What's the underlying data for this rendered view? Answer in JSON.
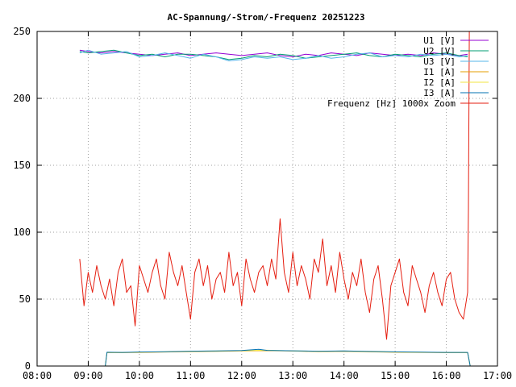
{
  "chart_data": {
    "type": "line",
    "title": "AC-Spannung/-Strom/-Frequenz 20251223",
    "xlabel": "",
    "ylabel": "",
    "xlim": [
      "08:00",
      "17:00"
    ],
    "ylim": [
      0,
      250
    ],
    "grid": true,
    "legend": "top-right",
    "x_ticks": [
      "08:00",
      "09:00",
      "10:00",
      "11:00",
      "12:00",
      "13:00",
      "14:00",
      "15:00",
      "16:00",
      "17:00"
    ],
    "y_ticks": [
      0,
      50,
      100,
      150,
      200,
      250
    ],
    "series": [
      {
        "name": "U1 [V]",
        "color": "#9400d3",
        "x": [
          "08:50",
          "09:00",
          "09:15",
          "09:30",
          "09:45",
          "10:00",
          "10:15",
          "10:30",
          "10:45",
          "11:00",
          "11:15",
          "11:30",
          "11:45",
          "12:00",
          "12:15",
          "12:30",
          "12:45",
          "13:00",
          "13:15",
          "13:30",
          "13:45",
          "14:00",
          "14:15",
          "14:30",
          "14:45",
          "15:00",
          "15:15",
          "15:30",
          "15:45",
          "16:00",
          "16:15",
          "16:25"
        ],
        "y": [
          236,
          235,
          234,
          235,
          234,
          233,
          232,
          233,
          234,
          232,
          233,
          234,
          233,
          232,
          233,
          234,
          232,
          231,
          233,
          232,
          234,
          233,
          232,
          234,
          233,
          232,
          233,
          232,
          234,
          233,
          232,
          233
        ]
      },
      {
        "name": "U2 [V]",
        "color": "#009e73",
        "x": [
          "08:50",
          "09:00",
          "09:15",
          "09:30",
          "09:45",
          "10:00",
          "10:15",
          "10:30",
          "10:45",
          "11:00",
          "11:15",
          "11:30",
          "11:45",
          "12:00",
          "12:15",
          "12:30",
          "12:45",
          "13:00",
          "13:15",
          "13:30",
          "13:45",
          "14:00",
          "14:15",
          "14:30",
          "14:45",
          "15:00",
          "15:15",
          "15:30",
          "15:45",
          "16:00",
          "16:15",
          "16:25"
        ],
        "y": [
          235,
          234,
          235,
          236,
          234,
          232,
          233,
          231,
          233,
          233,
          232,
          231,
          229,
          230,
          232,
          231,
          233,
          232,
          230,
          231,
          232,
          233,
          234,
          232,
          231,
          233,
          232,
          231,
          233,
          234,
          232,
          231
        ]
      },
      {
        "name": "U3 [V]",
        "color": "#56b4e9",
        "x": [
          "08:50",
          "09:00",
          "09:15",
          "09:30",
          "09:45",
          "10:00",
          "10:15",
          "10:30",
          "10:45",
          "11:00",
          "11:15",
          "11:30",
          "11:45",
          "12:00",
          "12:15",
          "12:30",
          "12:45",
          "13:00",
          "13:15",
          "13:30",
          "13:45",
          "14:00",
          "14:15",
          "14:30",
          "14:45",
          "15:00",
          "15:15",
          "15:30",
          "15:45",
          "16:00",
          "16:15",
          "16:25"
        ],
        "y": [
          234,
          236,
          233,
          234,
          235,
          231,
          232,
          234,
          232,
          230,
          233,
          231,
          228,
          229,
          231,
          230,
          231,
          229,
          230,
          232,
          230,
          231,
          233,
          234,
          231,
          232,
          231,
          233,
          232,
          233,
          231,
          232
        ]
      },
      {
        "name": "I1 [A]",
        "color": "#e69f00",
        "x": [
          "09:20",
          "09:22",
          "09:40",
          "10:00",
          "10:30",
          "11:00",
          "11:30",
          "12:00",
          "12:30",
          "13:00",
          "13:30",
          "14:00",
          "14:30",
          "15:00",
          "15:30",
          "16:00",
          "16:25",
          "16:28"
        ],
        "y": [
          0,
          10,
          10,
          10.2,
          10.5,
          10.8,
          11,
          11.3,
          11.5,
          11.2,
          10.8,
          11,
          10.6,
          10.3,
          10.2,
          10,
          10,
          0
        ]
      },
      {
        "name": "I2 [A]",
        "color": "#f0e442",
        "x": [
          "09:20",
          "09:22",
          "09:40",
          "10:00",
          "10:30",
          "11:00",
          "11:30",
          "12:00",
          "12:30",
          "13:00",
          "13:30",
          "14:00",
          "14:30",
          "15:00",
          "15:30",
          "16:00",
          "16:25",
          "16:28"
        ],
        "y": [
          0,
          10.2,
          10.1,
          10.4,
          10.6,
          11,
          11.2,
          11.5,
          11.8,
          11.3,
          11,
          11.2,
          10.8,
          10.5,
          10.3,
          10.1,
          10.1,
          0
        ]
      },
      {
        "name": "I3 [A]",
        "color": "#0072b2",
        "x": [
          "09:20",
          "09:22",
          "09:40",
          "10:00",
          "10:30",
          "11:00",
          "11:30",
          "12:00",
          "12:20",
          "12:30",
          "13:00",
          "13:30",
          "14:00",
          "14:30",
          "15:00",
          "15:30",
          "16:00",
          "16:25",
          "16:28"
        ],
        "y": [
          0,
          10.3,
          10.2,
          10.5,
          10.7,
          11.1,
          11.3,
          11.6,
          12.5,
          11.7,
          11.4,
          11.1,
          11.3,
          10.9,
          10.6,
          10.4,
          10.2,
          10.2,
          0
        ]
      },
      {
        "name": "Frequenz [Hz] 1000x Zoom",
        "color": "#e51e10",
        "x": [
          "08:50",
          "08:55",
          "09:00",
          "09:05",
          "09:10",
          "09:15",
          "09:20",
          "09:25",
          "09:30",
          "09:35",
          "09:40",
          "09:45",
          "09:50",
          "09:55",
          "10:00",
          "10:05",
          "10:10",
          "10:15",
          "10:20",
          "10:25",
          "10:30",
          "10:35",
          "10:40",
          "10:45",
          "10:50",
          "10:55",
          "11:00",
          "11:05",
          "11:10",
          "11:15",
          "11:20",
          "11:25",
          "11:30",
          "11:35",
          "11:40",
          "11:45",
          "11:50",
          "11:55",
          "12:00",
          "12:05",
          "12:10",
          "12:15",
          "12:20",
          "12:25",
          "12:30",
          "12:35",
          "12:40",
          "12:45",
          "12:50",
          "12:55",
          "13:00",
          "13:05",
          "13:10",
          "13:15",
          "13:20",
          "13:25",
          "13:30",
          "13:35",
          "13:40",
          "13:45",
          "13:50",
          "13:55",
          "14:00",
          "14:05",
          "14:10",
          "14:15",
          "14:20",
          "14:25",
          "14:30",
          "14:35",
          "14:40",
          "14:45",
          "14:50",
          "14:55",
          "15:00",
          "15:05",
          "15:10",
          "15:15",
          "15:20",
          "15:25",
          "15:30",
          "15:35",
          "15:40",
          "15:45",
          "15:50",
          "15:55",
          "16:00",
          "16:05",
          "16:10",
          "16:15",
          "16:20",
          "16:25",
          "16:26",
          "16:27"
        ],
        "y": [
          80,
          45,
          70,
          55,
          75,
          60,
          50,
          65,
          45,
          70,
          80,
          55,
          60,
          30,
          75,
          65,
          55,
          70,
          80,
          60,
          50,
          85,
          70,
          60,
          75,
          55,
          35,
          70,
          80,
          60,
          75,
          50,
          65,
          70,
          55,
          85,
          60,
          70,
          45,
          80,
          65,
          55,
          70,
          75,
          60,
          80,
          65,
          110,
          70,
          55,
          85,
          60,
          75,
          65,
          50,
          80,
          70,
          95,
          60,
          75,
          55,
          85,
          65,
          50,
          70,
          60,
          80,
          55,
          40,
          65,
          75,
          50,
          20,
          60,
          70,
          80,
          55,
          45,
          75,
          65,
          55,
          40,
          60,
          70,
          55,
          45,
          65,
          70,
          50,
          40,
          35,
          55,
          118,
          250
        ]
      }
    ]
  }
}
